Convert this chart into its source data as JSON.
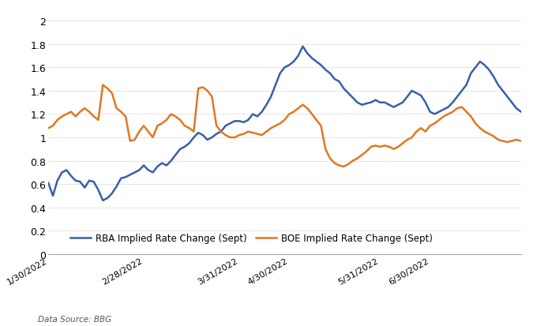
{
  "title": "",
  "xlabel": "",
  "ylabel": "",
  "ylim": [
    0,
    2.1
  ],
  "yticks": [
    0,
    0.2,
    0.4,
    0.6,
    0.8,
    1.0,
    1.2,
    1.4,
    1.6,
    1.8,
    2.0
  ],
  "rba_color": "#3a5eab",
  "boe_color": "#e07820",
  "rba_label": "RBA Implied Rate Change (Sept)",
  "boe_label": "BOE Implied Rate Change (Sept)",
  "source_text": "Data Source: BBG",
  "background_color": "#ffffff",
  "line_width": 1.8,
  "rba_data": [
    [
      0,
      0.61
    ],
    [
      1,
      0.5
    ],
    [
      2,
      0.63
    ],
    [
      3,
      0.7
    ],
    [
      4,
      0.72
    ],
    [
      5,
      0.67
    ],
    [
      6,
      0.63
    ],
    [
      7,
      0.62
    ],
    [
      8,
      0.57
    ],
    [
      9,
      0.63
    ],
    [
      10,
      0.62
    ],
    [
      11,
      0.55
    ],
    [
      12,
      0.46
    ],
    [
      13,
      0.48
    ],
    [
      14,
      0.52
    ],
    [
      15,
      0.58
    ],
    [
      16,
      0.65
    ],
    [
      17,
      0.66
    ],
    [
      18,
      0.68
    ],
    [
      19,
      0.7
    ],
    [
      20,
      0.72
    ],
    [
      21,
      0.76
    ],
    [
      22,
      0.72
    ],
    [
      23,
      0.7
    ],
    [
      24,
      0.75
    ],
    [
      25,
      0.78
    ],
    [
      26,
      0.76
    ],
    [
      27,
      0.8
    ],
    [
      28,
      0.85
    ],
    [
      29,
      0.9
    ],
    [
      30,
      0.92
    ],
    [
      31,
      0.95
    ],
    [
      32,
      1.0
    ],
    [
      33,
      1.04
    ],
    [
      34,
      1.02
    ],
    [
      35,
      0.98
    ],
    [
      36,
      1.0
    ],
    [
      37,
      1.03
    ],
    [
      38,
      1.05
    ],
    [
      39,
      1.1
    ],
    [
      40,
      1.12
    ],
    [
      41,
      1.14
    ],
    [
      42,
      1.14
    ],
    [
      43,
      1.13
    ],
    [
      44,
      1.15
    ],
    [
      45,
      1.2
    ],
    [
      46,
      1.18
    ],
    [
      47,
      1.22
    ],
    [
      48,
      1.28
    ],
    [
      49,
      1.35
    ],
    [
      50,
      1.45
    ],
    [
      51,
      1.55
    ],
    [
      52,
      1.6
    ],
    [
      53,
      1.62
    ],
    [
      54,
      1.65
    ],
    [
      55,
      1.7
    ],
    [
      56,
      1.78
    ],
    [
      57,
      1.72
    ],
    [
      58,
      1.68
    ],
    [
      59,
      1.65
    ],
    [
      60,
      1.62
    ],
    [
      61,
      1.58
    ],
    [
      62,
      1.55
    ],
    [
      63,
      1.5
    ],
    [
      64,
      1.48
    ],
    [
      65,
      1.42
    ],
    [
      66,
      1.38
    ],
    [
      67,
      1.34
    ],
    [
      68,
      1.3
    ],
    [
      69,
      1.28
    ],
    [
      70,
      1.29
    ],
    [
      71,
      1.3
    ],
    [
      72,
      1.32
    ],
    [
      73,
      1.3
    ],
    [
      74,
      1.3
    ],
    [
      75,
      1.28
    ],
    [
      76,
      1.26
    ],
    [
      77,
      1.28
    ],
    [
      78,
      1.3
    ],
    [
      79,
      1.35
    ],
    [
      80,
      1.4
    ],
    [
      81,
      1.38
    ],
    [
      82,
      1.36
    ],
    [
      83,
      1.3
    ],
    [
      84,
      1.22
    ],
    [
      85,
      1.2
    ],
    [
      86,
      1.22
    ],
    [
      87,
      1.24
    ],
    [
      88,
      1.26
    ],
    [
      89,
      1.3
    ],
    [
      90,
      1.35
    ],
    [
      91,
      1.4
    ],
    [
      92,
      1.45
    ],
    [
      93,
      1.55
    ],
    [
      94,
      1.6
    ],
    [
      95,
      1.65
    ],
    [
      96,
      1.62
    ],
    [
      97,
      1.58
    ],
    [
      98,
      1.52
    ],
    [
      99,
      1.45
    ],
    [
      100,
      1.4
    ],
    [
      101,
      1.35
    ],
    [
      102,
      1.3
    ],
    [
      103,
      1.25
    ],
    [
      104,
      1.22
    ]
  ],
  "boe_data": [
    [
      0,
      1.08
    ],
    [
      1,
      1.1
    ],
    [
      2,
      1.15
    ],
    [
      3,
      1.18
    ],
    [
      4,
      1.2
    ],
    [
      5,
      1.22
    ],
    [
      6,
      1.18
    ],
    [
      7,
      1.22
    ],
    [
      8,
      1.25
    ],
    [
      9,
      1.22
    ],
    [
      10,
      1.18
    ],
    [
      11,
      1.15
    ],
    [
      12,
      1.45
    ],
    [
      13,
      1.42
    ],
    [
      14,
      1.38
    ],
    [
      15,
      1.25
    ],
    [
      16,
      1.22
    ],
    [
      17,
      1.18
    ],
    [
      18,
      0.97
    ],
    [
      19,
      0.98
    ],
    [
      20,
      1.05
    ],
    [
      21,
      1.1
    ],
    [
      22,
      1.05
    ],
    [
      23,
      1.0
    ],
    [
      24,
      1.1
    ],
    [
      25,
      1.12
    ],
    [
      26,
      1.15
    ],
    [
      27,
      1.2
    ],
    [
      28,
      1.18
    ],
    [
      29,
      1.15
    ],
    [
      30,
      1.1
    ],
    [
      31,
      1.08
    ],
    [
      32,
      1.05
    ],
    [
      33,
      1.42
    ],
    [
      34,
      1.43
    ],
    [
      35,
      1.4
    ],
    [
      36,
      1.35
    ],
    [
      37,
      1.1
    ],
    [
      38,
      1.05
    ],
    [
      39,
      1.02
    ],
    [
      40,
      1.0
    ],
    [
      41,
      1.0
    ],
    [
      42,
      1.02
    ],
    [
      43,
      1.03
    ],
    [
      44,
      1.05
    ],
    [
      45,
      1.04
    ],
    [
      46,
      1.03
    ],
    [
      47,
      1.02
    ],
    [
      48,
      1.05
    ],
    [
      49,
      1.08
    ],
    [
      50,
      1.1
    ],
    [
      51,
      1.12
    ],
    [
      52,
      1.15
    ],
    [
      53,
      1.2
    ],
    [
      54,
      1.22
    ],
    [
      55,
      1.25
    ],
    [
      56,
      1.28
    ],
    [
      57,
      1.25
    ],
    [
      58,
      1.2
    ],
    [
      59,
      1.15
    ],
    [
      60,
      1.1
    ],
    [
      61,
      0.9
    ],
    [
      62,
      0.82
    ],
    [
      63,
      0.78
    ],
    [
      64,
      0.76
    ],
    [
      65,
      0.75
    ],
    [
      66,
      0.77
    ],
    [
      67,
      0.8
    ],
    [
      68,
      0.82
    ],
    [
      69,
      0.85
    ],
    [
      70,
      0.88
    ],
    [
      71,
      0.92
    ],
    [
      72,
      0.93
    ],
    [
      73,
      0.92
    ],
    [
      74,
      0.93
    ],
    [
      75,
      0.92
    ],
    [
      76,
      0.9
    ],
    [
      77,
      0.92
    ],
    [
      78,
      0.95
    ],
    [
      79,
      0.98
    ],
    [
      80,
      1.0
    ],
    [
      81,
      1.05
    ],
    [
      82,
      1.08
    ],
    [
      83,
      1.05
    ],
    [
      84,
      1.1
    ],
    [
      85,
      1.12
    ],
    [
      86,
      1.15
    ],
    [
      87,
      1.18
    ],
    [
      88,
      1.2
    ],
    [
      89,
      1.22
    ],
    [
      90,
      1.25
    ],
    [
      91,
      1.26
    ],
    [
      92,
      1.22
    ],
    [
      93,
      1.18
    ],
    [
      94,
      1.12
    ],
    [
      95,
      1.08
    ],
    [
      96,
      1.05
    ],
    [
      97,
      1.03
    ],
    [
      98,
      1.01
    ],
    [
      99,
      0.98
    ],
    [
      100,
      0.97
    ],
    [
      101,
      0.96
    ],
    [
      102,
      0.97
    ],
    [
      103,
      0.98
    ],
    [
      104,
      0.97
    ]
  ],
  "xtick_positions": [
    0,
    21,
    42,
    53,
    73,
    84,
    104
  ],
  "xtick_labels": [
    "1/30/2022",
    "2/28/2022",
    "3/31/2022",
    "4/30/2022",
    "5/31/2022",
    "6/30/2022",
    ""
  ]
}
